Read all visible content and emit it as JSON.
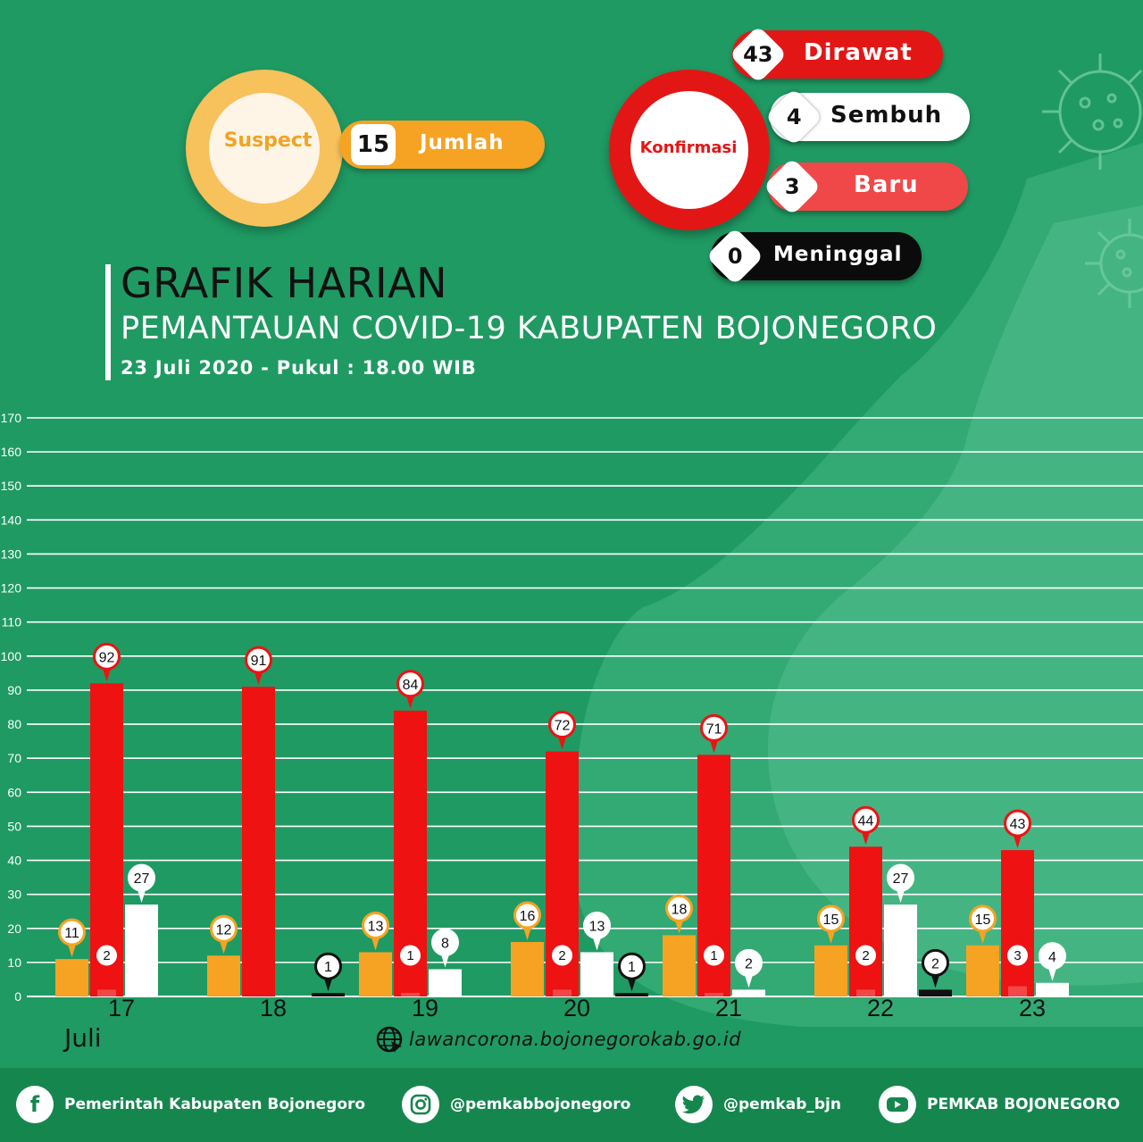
{
  "suspect": {
    "label": "Suspect",
    "count": "15",
    "count_label": "Jumlah"
  },
  "konfirmasi": {
    "label": "Konfirmasi",
    "dirawat": {
      "value": "43",
      "label": "Dirawat"
    },
    "sembuh": {
      "value": "4",
      "label": "Sembuh"
    },
    "baru": {
      "value": "3",
      "label": "Baru"
    },
    "meninggal": {
      "value": "0",
      "label": "Meninggal"
    }
  },
  "title": {
    "main": "GRAFIK HARIAN",
    "sub": "PEMANTAUAN COVID-19 KABUPATEN BOJONEGORO",
    "date": "23 Juli 2020 - Pukul : 18.00 WIB"
  },
  "chart_data": {
    "type": "bar",
    "categories": [
      "17",
      "18",
      "19",
      "20",
      "21",
      "22",
      "23"
    ],
    "month_label": "Juli",
    "ylim": [
      0,
      170
    ],
    "yticks": [
      0,
      10,
      20,
      30,
      40,
      50,
      60,
      70,
      80,
      90,
      100,
      110,
      120,
      130,
      140,
      150,
      160,
      170
    ],
    "grid": true,
    "colors": {
      "suspect": "#f6a323",
      "dirawat": "#ee1212",
      "baru": "#f04848",
      "sembuh": "#ffffff",
      "meninggal": "#111111"
    },
    "series": [
      {
        "key": "suspect",
        "values": [
          11,
          12,
          13,
          16,
          18,
          15,
          15
        ]
      },
      {
        "key": "dirawat",
        "values": [
          92,
          91,
          84,
          72,
          71,
          44,
          43
        ]
      },
      {
        "key": "baru",
        "values": [
          2,
          null,
          1,
          2,
          1,
          2,
          3
        ]
      },
      {
        "key": "sembuh",
        "values": [
          27,
          null,
          8,
          13,
          2,
          27,
          4
        ]
      },
      {
        "key": "meninggal",
        "values": [
          null,
          1,
          null,
          1,
          null,
          2,
          null
        ]
      }
    ]
  },
  "website": "lawancorona.bojonegorokab.go.id",
  "footer": {
    "facebook": "Pemerintah Kabupaten Bojonegoro",
    "instagram": "@pemkabbojonegoro",
    "twitter": "@pemkab_bjn",
    "youtube": "PEMKAB BOJONEGORO"
  }
}
